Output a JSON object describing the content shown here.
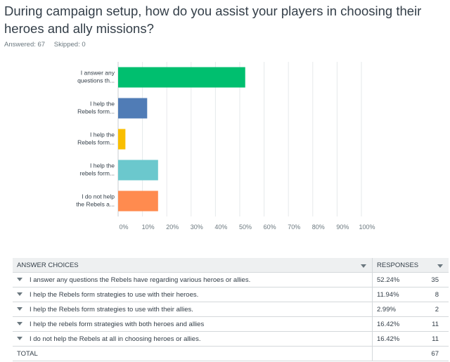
{
  "question": "During campaign setup, how do you assist your players in choosing their heroes and ally missions?",
  "answered_label": "Answered: 67",
  "skipped_label": "Skipped: 0",
  "table": {
    "col_choices": "ANSWER CHOICES",
    "col_responses": "RESPONSES",
    "total_label": "TOTAL",
    "total_value": "67",
    "rows": [
      {
        "choice": "I answer any questions the Rebels have regarding various heroes or allies.",
        "percent": "52.24%",
        "count": "35"
      },
      {
        "choice": "I help the Rebels form strategies to use with their heroes.",
        "percent": "11.94%",
        "count": "8"
      },
      {
        "choice": "I help the Rebels form strategies to use with their allies.",
        "percent": "2.99%",
        "count": "2"
      },
      {
        "choice": "I help the rebels form strategies with both heroes and allies",
        "percent": "16.42%",
        "count": "11"
      },
      {
        "choice": "I do not help the Rebels at all in choosing heroes or allies.",
        "percent": "16.42%",
        "count": "11"
      }
    ]
  },
  "chart_data": {
    "type": "bar",
    "orientation": "horizontal",
    "categories": [
      [
        "I answer any",
        "questions th..."
      ],
      [
        "I help the",
        "Rebels form..."
      ],
      [
        "I help the",
        "Rebels form..."
      ],
      [
        "I help the",
        "rebels form..."
      ],
      [
        "I do not help",
        "the Rebels a..."
      ]
    ],
    "values": [
      52.24,
      11.94,
      2.99,
      16.42,
      16.42
    ],
    "colors": [
      "#00bf6f",
      "#507cb6",
      "#f9be00",
      "#6bc8cd",
      "#ff8b4f"
    ],
    "xlim": [
      0,
      100
    ],
    "xticks": [
      "0%",
      "10%",
      "20%",
      "30%",
      "40%",
      "50%",
      "60%",
      "70%",
      "80%",
      "90%",
      "100%"
    ],
    "grid": true
  }
}
